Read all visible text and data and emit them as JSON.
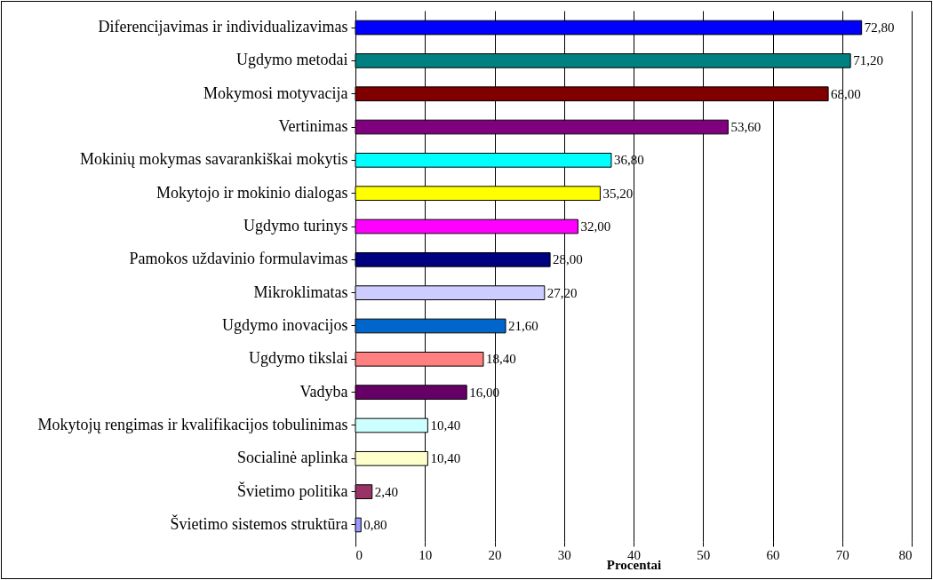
{
  "chart_data": {
    "type": "bar",
    "orientation": "horizontal",
    "xlabel": "Procentai",
    "categories": [
      "Diferencijavimas ir individualizavimas",
      "Ugdymo metodai",
      "Mokymosi motyvacija",
      "Vertinimas",
      "Mokinių mokymas savarankiškai mokytis",
      "Mokytojo ir mokinio dialogas",
      "Ugdymo turinys",
      "Pamokos uždavinio formulavimas",
      "Mikroklimatas",
      "Ugdymo inovacijos",
      "Ugdymo tikslai",
      "Vadyba",
      "Mokytojų rengimas ir kvalifikacijos tobulinimas",
      "Socialinė aplinka",
      "Švietimo politika",
      "Švietimo sistemos struktūra"
    ],
    "values": [
      72.8,
      71.2,
      68.0,
      53.6,
      36.8,
      35.2,
      32.0,
      28.0,
      27.2,
      21.6,
      18.4,
      16.0,
      10.4,
      10.4,
      2.4,
      0.8
    ],
    "value_labels": [
      "72,80",
      "71,20",
      "68,00",
      "53,60",
      "36,80",
      "35,20",
      "32,00",
      "28,00",
      "27,20",
      "21,60",
      "18,40",
      "16,00",
      "10,40",
      "10,40",
      "2,40",
      "0,80"
    ],
    "colors": [
      "#0000ff",
      "#008080",
      "#800000",
      "#800080",
      "#00ffff",
      "#ffff00",
      "#ff00ff",
      "#000080",
      "#ccccff",
      "#0066cc",
      "#ff8080",
      "#660066",
      "#ccffff",
      "#ffffcc",
      "#993366",
      "#9999ff"
    ],
    "xlim": [
      0,
      80
    ],
    "xticks": [
      0,
      10,
      20,
      30,
      40,
      50,
      60,
      70,
      80
    ],
    "grid": "x"
  }
}
